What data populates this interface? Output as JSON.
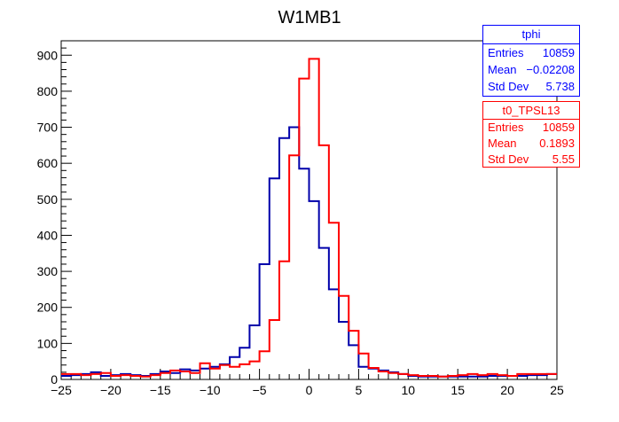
{
  "chart_data": {
    "type": "histogram",
    "title": "W1MB1",
    "xlim": [
      -25,
      25
    ],
    "ylim": [
      0,
      940
    ],
    "bin_width": 1,
    "bin_edges_start": -25,
    "x_ticks": [
      -25,
      -20,
      -15,
      -10,
      -5,
      0,
      5,
      10,
      15,
      20,
      25
    ],
    "y_ticks": [
      0,
      100,
      200,
      300,
      400,
      500,
      600,
      700,
      800,
      900
    ],
    "series": [
      {
        "name": "tphi",
        "color": "#0000aa",
        "values": [
          10,
          12,
          15,
          20,
          10,
          12,
          15,
          12,
          10,
          15,
          22,
          18,
          28,
          25,
          30,
          35,
          42,
          62,
          88,
          150,
          320,
          558,
          670,
          700,
          585,
          495,
          365,
          250,
          160,
          95,
          35,
          30,
          25,
          20,
          15,
          10,
          8,
          8,
          8,
          8,
          8,
          8,
          8,
          10,
          10,
          10,
          10,
          12,
          12,
          15
        ]
      },
      {
        "name": "t0_TPSL13",
        "color": "#ff0000",
        "values": [
          15,
          15,
          12,
          15,
          18,
          10,
          12,
          10,
          8,
          12,
          18,
          25,
          22,
          18,
          45,
          30,
          40,
          35,
          42,
          50,
          78,
          165,
          328,
          622,
          835,
          890,
          650,
          435,
          232,
          135,
          72,
          32,
          22,
          18,
          15,
          12,
          10,
          10,
          8,
          10,
          12,
          15,
          12,
          15,
          12,
          10,
          15,
          15,
          15,
          15
        ]
      }
    ],
    "stats": [
      {
        "name": "tphi",
        "entries_label": "Entries",
        "entries": "10859",
        "mean_label": "Mean",
        "mean": "−0.02208",
        "std_label": "Std Dev",
        "std": "5.738"
      },
      {
        "name": "t0_TPSL13",
        "entries_label": "Entries",
        "entries": "10859",
        "mean_label": "Mean",
        "mean": "0.1893",
        "std_label": "Std Dev",
        "std": "5.55"
      }
    ]
  }
}
